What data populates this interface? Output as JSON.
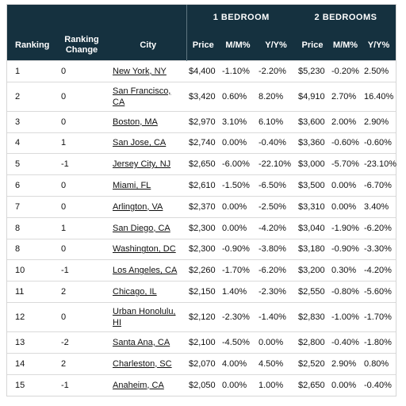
{
  "header": {
    "group1": "1 BEDROOM",
    "group2": "2 BEDROOMS",
    "columns": {
      "ranking": "Ranking",
      "ranking_change": "Ranking Change",
      "city": "City",
      "price1": "Price",
      "mm1": "M/M%",
      "yy1": "Y/Y%",
      "price2": "Price",
      "mm2": "M/M%",
      "yy2": "Y/Y%"
    }
  },
  "rows": [
    {
      "rank": "1",
      "change": "0",
      "city": "New York, NY",
      "p1": "$4,400",
      "mm1": "-1.10%",
      "yy1": "-2.20%",
      "p2": "$5,230",
      "mm2": "-0.20%",
      "yy2": "2.50%"
    },
    {
      "rank": "2",
      "change": "0",
      "city": "San Francisco, CA",
      "p1": "$3,420",
      "mm1": "0.60%",
      "yy1": "8.20%",
      "p2": "$4,910",
      "mm2": "2.70%",
      "yy2": "16.40%"
    },
    {
      "rank": "3",
      "change": "0",
      "city": "Boston, MA",
      "p1": "$2,970",
      "mm1": "3.10%",
      "yy1": "6.10%",
      "p2": "$3,600",
      "mm2": "2.00%",
      "yy2": "2.90%"
    },
    {
      "rank": "4",
      "change": "1",
      "city": "San Jose, CA",
      "p1": "$2,740",
      "mm1": "0.00%",
      "yy1": "-0.40%",
      "p2": "$3,360",
      "mm2": "-0.60%",
      "yy2": "-0.60%"
    },
    {
      "rank": "5",
      "change": "-1",
      "city": "Jersey City, NJ",
      "p1": "$2,650",
      "mm1": "-6.00%",
      "yy1": "-22.10%",
      "p2": "$3,000",
      "mm2": "-5.70%",
      "yy2": "-23.10%"
    },
    {
      "rank": "6",
      "change": "0",
      "city": "Miami, FL",
      "p1": "$2,610",
      "mm1": "-1.50%",
      "yy1": "-6.50%",
      "p2": "$3,500",
      "mm2": "0.00%",
      "yy2": "-6.70%"
    },
    {
      "rank": "7",
      "change": "0",
      "city": "Arlington, VA",
      "p1": "$2,370",
      "mm1": "0.00%",
      "yy1": "-2.50%",
      "p2": "$3,310",
      "mm2": "0.00%",
      "yy2": "3.40%"
    },
    {
      "rank": "8",
      "change": "1",
      "city": "San Diego, CA",
      "p1": "$2,300",
      "mm1": "0.00%",
      "yy1": "-4.20%",
      "p2": "$3,040",
      "mm2": "-1.90%",
      "yy2": "-6.20%"
    },
    {
      "rank": "8",
      "change": "0",
      "city": "Washington, DC",
      "p1": "$2,300",
      "mm1": "-0.90%",
      "yy1": "-3.80%",
      "p2": "$3,180",
      "mm2": "-0.90%",
      "yy2": "-3.30%"
    },
    {
      "rank": "10",
      "change": "-1",
      "city": "Los Angeles, CA",
      "p1": "$2,260",
      "mm1": "-1.70%",
      "yy1": "-6.20%",
      "p2": "$3,200",
      "mm2": "0.30%",
      "yy2": "-4.20%"
    },
    {
      "rank": "11",
      "change": "2",
      "city": "Chicago, IL",
      "p1": "$2,150",
      "mm1": "1.40%",
      "yy1": "-2.30%",
      "p2": "$2,550",
      "mm2": "-0.80%",
      "yy2": "-5.60%"
    },
    {
      "rank": "12",
      "change": "0",
      "city": "Urban Honolulu, HI",
      "p1": "$2,120",
      "mm1": "-2.30%",
      "yy1": "-1.40%",
      "p2": "$2,830",
      "mm2": "-1.00%",
      "yy2": "-1.70%"
    },
    {
      "rank": "13",
      "change": "-2",
      "city": "Santa Ana, CA",
      "p1": "$2,100",
      "mm1": "-4.50%",
      "yy1": "0.00%",
      "p2": "$2,800",
      "mm2": "-0.40%",
      "yy2": "-1.80%"
    },
    {
      "rank": "14",
      "change": "2",
      "city": "Charleston, SC",
      "p1": "$2,070",
      "mm1": "4.00%",
      "yy1": "4.50%",
      "p2": "$2,520",
      "mm2": "2.90%",
      "yy2": "0.80%"
    },
    {
      "rank": "15",
      "change": "-1",
      "city": "Anaheim, CA",
      "p1": "$2,050",
      "mm1": "0.00%",
      "yy1": "1.00%",
      "p2": "$2,650",
      "mm2": "0.00%",
      "yy2": "-0.40%"
    }
  ]
}
